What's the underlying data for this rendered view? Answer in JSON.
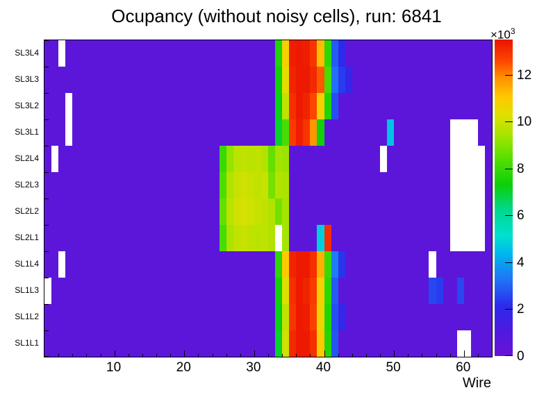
{
  "title": "Ocupancy (without noisy cells), run: 6841",
  "axes": {
    "x_title": "Wire",
    "x_ticks": [
      10,
      20,
      30,
      40,
      50,
      60
    ],
    "x_minor_step": 2
  },
  "colorbar": {
    "unit_prefix": "×10",
    "unit_exponent": "3",
    "ticks": [
      0,
      2,
      4,
      6,
      8,
      10,
      12
    ],
    "tick_scale": 1000
  },
  "chart_data": {
    "type": "heatmap",
    "title": "Ocupancy (without noisy cells), run: 6841",
    "xlabel": "Wire",
    "x_range": [
      0,
      64
    ],
    "n_wires": 64,
    "zmin": 0,
    "zmax": 13500,
    "z_tick_unit": "×10³",
    "legend_position": "right-colorbar",
    "grid": false,
    "empty_color": "#ffffff",
    "background_value": 500,
    "palette": [
      [
        0.0,
        "#6913d6"
      ],
      [
        0.09,
        "#4a1be0"
      ],
      [
        0.16,
        "#2b2bec"
      ],
      [
        0.24,
        "#2173f5"
      ],
      [
        0.32,
        "#00b4f0"
      ],
      [
        0.38,
        "#00e0d0"
      ],
      [
        0.46,
        "#00d890"
      ],
      [
        0.54,
        "#0ad00a"
      ],
      [
        0.63,
        "#5ce000"
      ],
      [
        0.7,
        "#a8e400"
      ],
      [
        0.76,
        "#e0e000"
      ],
      [
        0.82,
        "#ffc800"
      ],
      [
        0.88,
        "#ff9000"
      ],
      [
        0.93,
        "#ff4800"
      ],
      [
        1.0,
        "#eb1300"
      ]
    ],
    "rows": [
      {
        "label": "SL3L4",
        "cells": {
          "3": 0,
          "34": 7600,
          "35": 10800,
          "36": 13300,
          "37": 13400,
          "38": 13300,
          "39": 12900,
          "40": 11200,
          "41": 7800,
          "42": 2900,
          "43": 2100
        }
      },
      {
        "label": "SL3L3",
        "cells": {
          "34": 7400,
          "35": 10400,
          "36": 13200,
          "37": 13400,
          "38": 13400,
          "39": 13100,
          "40": 12400,
          "41": 8200,
          "42": 3200,
          "43": 2400,
          "44": 1900
        }
      },
      {
        "label": "SL3L2",
        "cells": {
          "4": 0,
          "34": 7200,
          "35": 9800,
          "36": 13000,
          "37": 13400,
          "38": 13200,
          "39": 12600,
          "40": 10800,
          "41": 7600,
          "42": 2700
        }
      },
      {
        "label": "SL3L1",
        "cells": {
          "4": 0,
          "34": 7000,
          "35": 8200,
          "36": 12800,
          "37": 13300,
          "38": 12900,
          "39": 11800,
          "40": 7400,
          "50": 4600,
          "59": 0,
          "60": 0,
          "61": 0,
          "62": 0
        }
      },
      {
        "label": "SL2L4",
        "cells": {
          "2": 0,
          "26": 8000,
          "27": 9200,
          "28": 9700,
          "29": 9800,
          "30": 9700,
          "31": 9800,
          "32": 9600,
          "33": 8600,
          "34": 9400,
          "35": 9300,
          "49": 0,
          "59": 0,
          "60": 0,
          "61": 0,
          "62": 0,
          "63": 0
        }
      },
      {
        "label": "SL2L3",
        "cells": {
          "26": 8300,
          "27": 9600,
          "28": 9900,
          "29": 10000,
          "30": 9900,
          "31": 9800,
          "32": 9900,
          "33": 8800,
          "34": 9600,
          "35": 9500,
          "59": 0,
          "60": 0,
          "61": 0,
          "62": 0,
          "63": 0
        }
      },
      {
        "label": "SL2L2",
        "cells": {
          "26": 8600,
          "27": 9700,
          "28": 10000,
          "29": 10100,
          "30": 10000,
          "31": 9900,
          "32": 9800,
          "33": 9600,
          "34": 8800,
          "35": 9400,
          "59": 0,
          "60": 0,
          "61": 0,
          "62": 0,
          "63": 0
        }
      },
      {
        "label": "SL2L1",
        "cells": {
          "26": 8200,
          "27": 9500,
          "28": 9800,
          "29": 9900,
          "30": 9800,
          "31": 9700,
          "32": 9800,
          "33": 9600,
          "34": 0,
          "35": 9400,
          "40": 4800,
          "41": 13000,
          "59": 0,
          "60": 0,
          "61": 0,
          "62": 0,
          "63": 0
        }
      },
      {
        "label": "SL1L4",
        "cells": {
          "3": 0,
          "34": 7800,
          "35": 11000,
          "36": 13200,
          "37": 13400,
          "38": 13400,
          "39": 13000,
          "40": 11400,
          "41": 8000,
          "42": 3400,
          "43": 2300,
          "56": 0
        }
      },
      {
        "label": "SL1L3",
        "cells": {
          "1": 0,
          "34": 7400,
          "35": 10200,
          "36": 13000,
          "37": 13400,
          "38": 13200,
          "39": 12800,
          "40": 10800,
          "41": 7800,
          "42": 2900,
          "56": 2600,
          "57": 2400,
          "60": 2600
        }
      },
      {
        "label": "SL1L2",
        "cells": {
          "34": 7200,
          "35": 9800,
          "36": 12900,
          "37": 13400,
          "38": 13300,
          "39": 12700,
          "40": 10600,
          "41": 7600,
          "42": 2700,
          "43": 1900
        }
      },
      {
        "label": "SL1L1",
        "cells": {
          "34": 7000,
          "35": 10000,
          "36": 13100,
          "37": 13400,
          "38": 13400,
          "39": 13000,
          "40": 11000,
          "41": 7700,
          "42": 2800,
          "60": 0,
          "61": 0
        }
      }
    ]
  }
}
